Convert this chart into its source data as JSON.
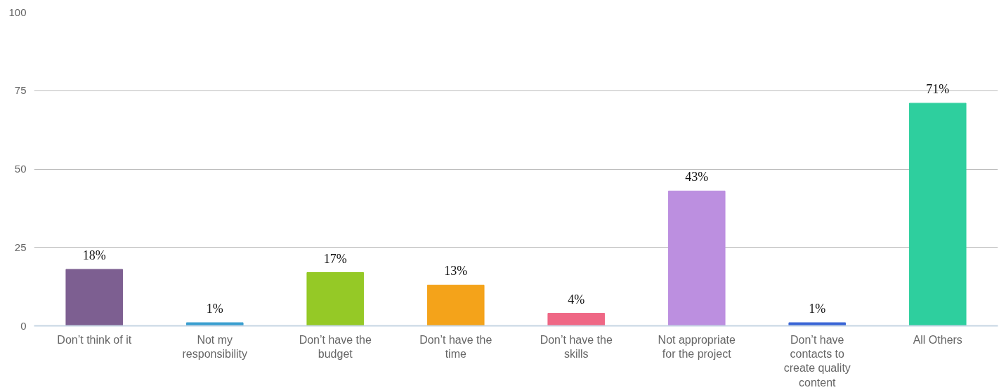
{
  "chart_data": {
    "type": "bar",
    "categories": [
      "Don’t think of it",
      "Not my responsibility",
      "Don’t have the budget",
      "Don’t have the time",
      "Don’t have the skills",
      "Not appropriate for the project",
      "Don’t have contacts to create quality content",
      "All Others"
    ],
    "values": [
      18,
      1,
      17,
      13,
      4,
      43,
      1,
      71
    ],
    "colors": [
      "#7d5f91",
      "#3a9fd0",
      "#95c926",
      "#f4a31a",
      "#ef6785",
      "#bc8fe0",
      "#3a66d6",
      "#2ecf9e"
    ],
    "value_labels": [
      "18%",
      "1%",
      "17%",
      "13%",
      "4%",
      "43%",
      "1%",
      "71%"
    ],
    "ylim": [
      0,
      100
    ],
    "yticks": [
      0,
      25,
      50,
      75,
      100
    ],
    "grid": "y"
  }
}
